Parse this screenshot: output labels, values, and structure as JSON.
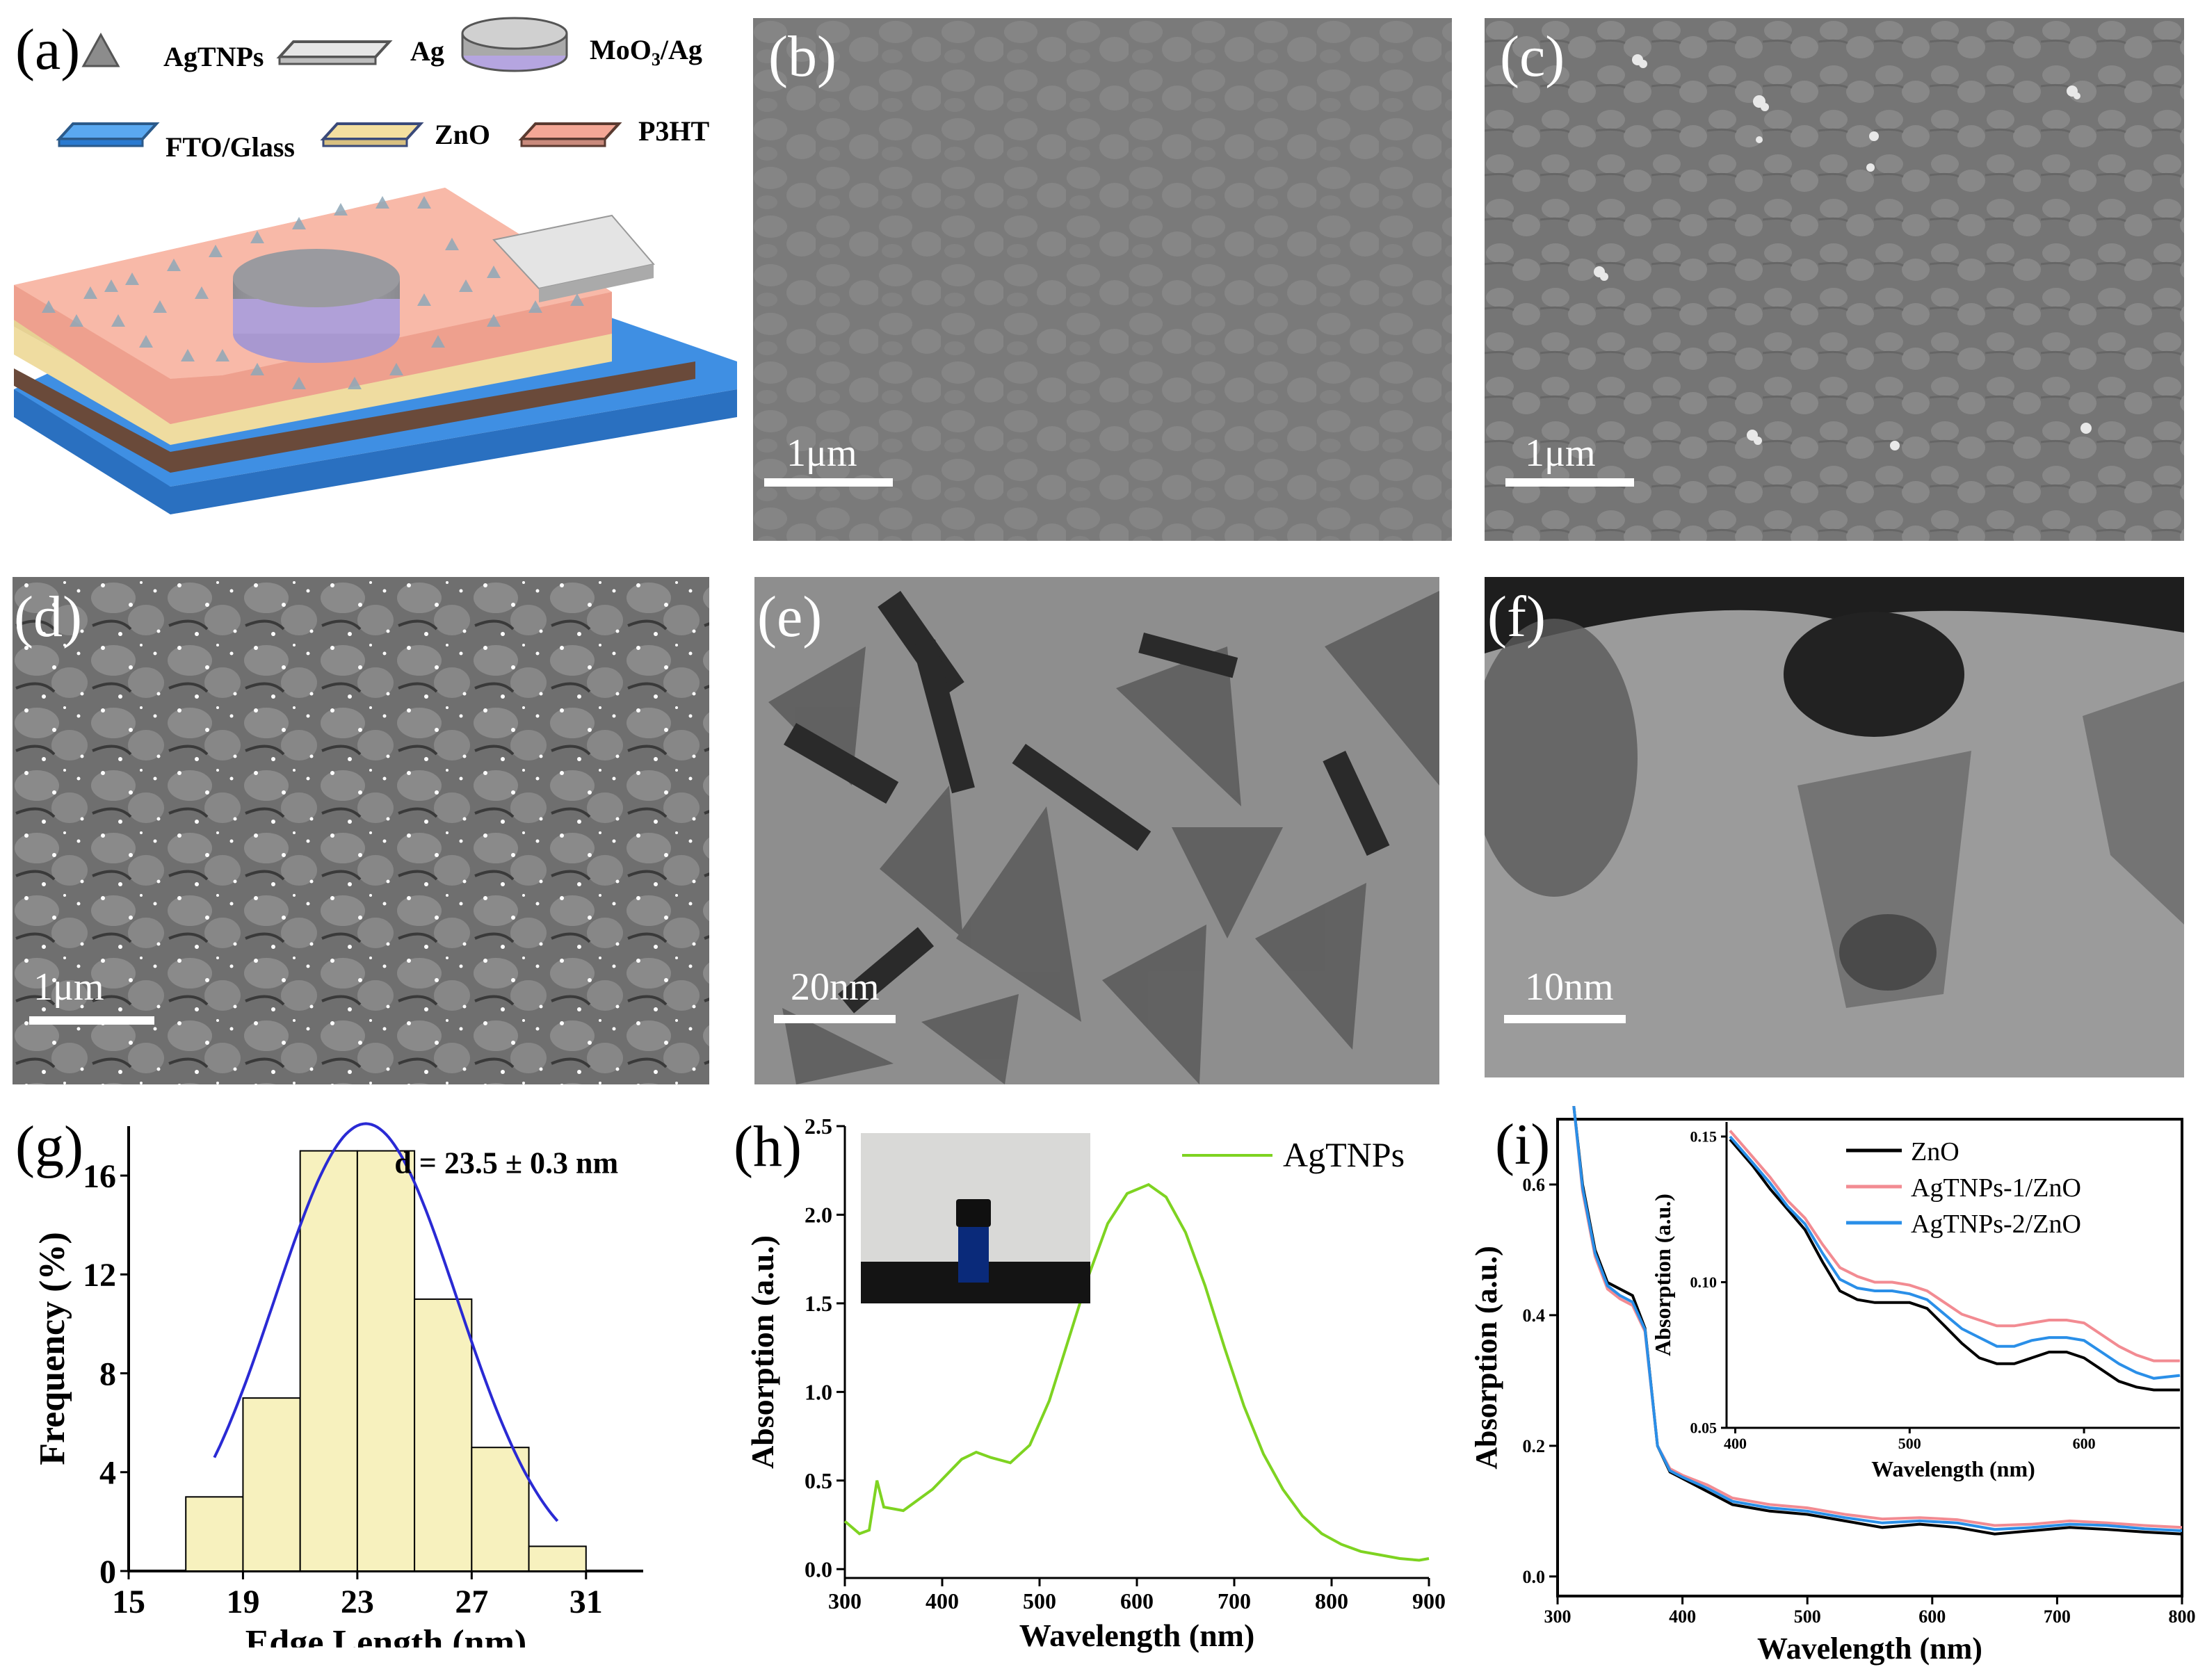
{
  "panel_a": {
    "label": "(a)",
    "legend": {
      "agtnps": "AgTNPs",
      "ag": "Ag",
      "moo3ag_main": "MoO",
      "moo3ag_sub": "3",
      "moo3ag_tail": "/Ag",
      "fto": "FTO/Glass",
      "zno": "ZnO",
      "p3ht": "P3HT"
    },
    "colors": {
      "fto": "#3d8fe0",
      "zno": "#efdca0",
      "p3ht": "#f4a796",
      "ag": "#cfcfcf",
      "disk": "#9a9aa0",
      "disk_side": "#b9a9d8"
    }
  },
  "panel_b": {
    "label": "(b)",
    "scale": "1μm"
  },
  "panel_c": {
    "label": "(c)",
    "scale": "1μm"
  },
  "panel_d": {
    "label": "(d)",
    "scale": "1μm"
  },
  "panel_e": {
    "label": "(e)",
    "scale": "20nm"
  },
  "panel_f": {
    "label": "(f)",
    "scale": "10nm"
  },
  "panel_g": {
    "label": "(g)",
    "annotation": "d = 23.5 ± 0.3 nm",
    "chart_data": {
      "type": "bar",
      "xlabel": "Edge Length (nm)",
      "ylabel": "Frequency (%)",
      "xlim": [
        15,
        33
      ],
      "ylim": [
        0,
        18
      ],
      "xticks": [
        15,
        19,
        23,
        27,
        31
      ],
      "yticks": [
        0,
        4,
        8,
        12,
        16
      ],
      "bins": [
        {
          "from": 17,
          "to": 19,
          "value": 3
        },
        {
          "from": 19,
          "to": 21,
          "value": 7
        },
        {
          "from": 21,
          "to": 23,
          "value": 17
        },
        {
          "from": 23,
          "to": 25,
          "value": 17
        },
        {
          "from": 25,
          "to": 27,
          "value": 11
        },
        {
          "from": 27,
          "to": 29,
          "value": 5
        },
        {
          "from": 29,
          "to": 31,
          "value": 1
        }
      ],
      "fit": {
        "type": "gaussian",
        "mean": 23.3,
        "sigma": 3.2,
        "amplitude": 18.1,
        "from": 18,
        "to": 30
      },
      "colors": {
        "bar": "#f7f1be",
        "fit": "#2a2ad4"
      }
    }
  },
  "panel_h": {
    "label": "(h)",
    "chart_data": {
      "type": "line",
      "xlabel": "Wavelength (nm)",
      "ylabel": "Absorption (a.u.)",
      "xlim": [
        300,
        900
      ],
      "ylim": [
        -0.05,
        2.5
      ],
      "xticks": [
        300,
        400,
        500,
        600,
        700,
        800,
        900
      ],
      "yticks": [
        0.0,
        0.5,
        1.0,
        1.5,
        2.0,
        2.5
      ],
      "series": [
        {
          "name": "AgTNPs",
          "color": "#7ed321",
          "points": [
            [
              300,
              0.27
            ],
            [
              315,
              0.2
            ],
            [
              325,
              0.22
            ],
            [
              333,
              0.5
            ],
            [
              340,
              0.35
            ],
            [
              360,
              0.33
            ],
            [
              390,
              0.45
            ],
            [
              420,
              0.62
            ],
            [
              435,
              0.66
            ],
            [
              450,
              0.63
            ],
            [
              470,
              0.6
            ],
            [
              490,
              0.7
            ],
            [
              510,
              0.95
            ],
            [
              530,
              1.3
            ],
            [
              550,
              1.65
            ],
            [
              570,
              1.95
            ],
            [
              590,
              2.12
            ],
            [
              612,
              2.17
            ],
            [
              630,
              2.1
            ],
            [
              650,
              1.9
            ],
            [
              670,
              1.6
            ],
            [
              690,
              1.25
            ],
            [
              710,
              0.92
            ],
            [
              730,
              0.65
            ],
            [
              750,
              0.45
            ],
            [
              770,
              0.3
            ],
            [
              790,
              0.2
            ],
            [
              810,
              0.14
            ],
            [
              830,
              0.1
            ],
            [
              850,
              0.08
            ],
            [
              870,
              0.06
            ],
            [
              890,
              0.05
            ],
            [
              900,
              0.06
            ]
          ]
        }
      ]
    }
  },
  "panel_i": {
    "label": "(i)",
    "chart_data": [
      {
        "type": "line",
        "xlabel": "Wavelength (nm)",
        "ylabel": "Absorption (a.u.)",
        "xlim": [
          300,
          800
        ],
        "ylim": [
          -0.03,
          0.7
        ],
        "xticks": [
          300,
          400,
          500,
          600,
          700,
          800
        ],
        "yticks": [
          0.0,
          0.2,
          0.4,
          0.6
        ],
        "series": [
          {
            "name": "ZnO",
            "color": "#000000",
            "points": [
              [
                313,
                0.72
              ],
              [
                320,
                0.6
              ],
              [
                330,
                0.5
              ],
              [
                340,
                0.45
              ],
              [
                350,
                0.44
              ],
              [
                360,
                0.43
              ],
              [
                370,
                0.38
              ],
              [
                380,
                0.2
              ],
              [
                390,
                0.16
              ],
              [
                400,
                0.15
              ],
              [
                420,
                0.13
              ],
              [
                440,
                0.11
              ],
              [
                470,
                0.1
              ],
              [
                500,
                0.095
              ],
              [
                530,
                0.085
              ],
              [
                560,
                0.075
              ],
              [
                590,
                0.08
              ],
              [
                620,
                0.075
              ],
              [
                650,
                0.065
              ],
              [
                680,
                0.07
              ],
              [
                710,
                0.075
              ],
              [
                740,
                0.072
              ],
              [
                770,
                0.068
              ],
              [
                800,
                0.065
              ]
            ]
          },
          {
            "name": "AgTNPs-1/ZnO",
            "color": "#f28b92",
            "points": [
              [
                313,
                0.72
              ],
              [
                320,
                0.59
              ],
              [
                330,
                0.49
              ],
              [
                340,
                0.44
              ],
              [
                350,
                0.425
              ],
              [
                360,
                0.415
              ],
              [
                370,
                0.375
              ],
              [
                380,
                0.2
              ],
              [
                390,
                0.165
              ],
              [
                400,
                0.155
              ],
              [
                420,
                0.14
              ],
              [
                440,
                0.12
              ],
              [
                470,
                0.11
              ],
              [
                500,
                0.105
              ],
              [
                530,
                0.095
              ],
              [
                560,
                0.088
              ],
              [
                590,
                0.09
              ],
              [
                620,
                0.087
              ],
              [
                650,
                0.078
              ],
              [
                680,
                0.08
              ],
              [
                710,
                0.085
              ],
              [
                740,
                0.082
              ],
              [
                770,
                0.078
              ],
              [
                800,
                0.075
              ]
            ]
          },
          {
            "name": "AgTNPs-2/ZnO",
            "color": "#2a8fe8",
            "points": [
              [
                313,
                0.72
              ],
              [
                320,
                0.595
              ],
              [
                330,
                0.495
              ],
              [
                340,
                0.445
              ],
              [
                350,
                0.43
              ],
              [
                360,
                0.42
              ],
              [
                370,
                0.378
              ],
              [
                380,
                0.2
              ],
              [
                390,
                0.162
              ],
              [
                400,
                0.152
              ],
              [
                420,
                0.135
              ],
              [
                440,
                0.115
              ],
              [
                470,
                0.105
              ],
              [
                500,
                0.1
              ],
              [
                530,
                0.09
              ],
              [
                560,
                0.082
              ],
              [
                590,
                0.085
              ],
              [
                620,
                0.082
              ],
              [
                650,
                0.072
              ],
              [
                680,
                0.075
              ],
              [
                710,
                0.08
              ],
              [
                740,
                0.078
              ],
              [
                770,
                0.073
              ],
              [
                800,
                0.07
              ]
            ]
          }
        ]
      },
      {
        "type": "line",
        "xlabel": "Wavelength (nm)",
        "ylabel": "Absorption (a.u.)",
        "xlim": [
          395,
          655
        ],
        "ylim": [
          0.05,
          0.155
        ],
        "xticks": [
          400,
          500,
          600
        ],
        "yticks": [
          0.05,
          0.1,
          0.15
        ],
        "series": [
          {
            "name": "ZnO",
            "color": "#000000",
            "points": [
              [
                397,
                0.149
              ],
              [
                410,
                0.14
              ],
              [
                420,
                0.132
              ],
              [
                430,
                0.125
              ],
              [
                440,
                0.118
              ],
              [
                450,
                0.107
              ],
              [
                460,
                0.097
              ],
              [
                470,
                0.094
              ],
              [
                480,
                0.093
              ],
              [
                490,
                0.093
              ],
              [
                500,
                0.093
              ],
              [
                510,
                0.091
              ],
              [
                520,
                0.085
              ],
              [
                530,
                0.079
              ],
              [
                540,
                0.074
              ],
              [
                550,
                0.072
              ],
              [
                560,
                0.072
              ],
              [
                570,
                0.074
              ],
              [
                580,
                0.076
              ],
              [
                590,
                0.076
              ],
              [
                600,
                0.074
              ],
              [
                610,
                0.07
              ],
              [
                620,
                0.066
              ],
              [
                630,
                0.064
              ],
              [
                640,
                0.063
              ],
              [
                655,
                0.063
              ]
            ]
          },
          {
            "name": "AgTNPs-1/ZnO",
            "color": "#f28b92",
            "points": [
              [
                397,
                0.152
              ],
              [
                410,
                0.143
              ],
              [
                420,
                0.136
              ],
              [
                430,
                0.128
              ],
              [
                440,
                0.122
              ],
              [
                450,
                0.113
              ],
              [
                460,
                0.105
              ],
              [
                470,
                0.102
              ],
              [
                480,
                0.1
              ],
              [
                490,
                0.1
              ],
              [
                500,
                0.099
              ],
              [
                510,
                0.097
              ],
              [
                520,
                0.093
              ],
              [
                530,
                0.089
              ],
              [
                540,
                0.087
              ],
              [
                550,
                0.085
              ],
              [
                560,
                0.085
              ],
              [
                570,
                0.086
              ],
              [
                580,
                0.087
              ],
              [
                590,
                0.087
              ],
              [
                600,
                0.086
              ],
              [
                610,
                0.082
              ],
              [
                620,
                0.078
              ],
              [
                630,
                0.075
              ],
              [
                640,
                0.073
              ],
              [
                655,
                0.073
              ]
            ]
          },
          {
            "name": "AgTNPs-2/ZnO",
            "color": "#2a8fe8",
            "points": [
              [
                397,
                0.15
              ],
              [
                410,
                0.141
              ],
              [
                420,
                0.134
              ],
              [
                430,
                0.126
              ],
              [
                440,
                0.12
              ],
              [
                450,
                0.11
              ],
              [
                460,
                0.101
              ],
              [
                470,
                0.098
              ],
              [
                480,
                0.097
              ],
              [
                490,
                0.097
              ],
              [
                500,
                0.096
              ],
              [
                510,
                0.094
              ],
              [
                520,
                0.089
              ],
              [
                530,
                0.084
              ],
              [
                540,
                0.081
              ],
              [
                550,
                0.078
              ],
              [
                560,
                0.078
              ],
              [
                570,
                0.08
              ],
              [
                580,
                0.081
              ],
              [
                590,
                0.081
              ],
              [
                600,
                0.08
              ],
              [
                610,
                0.076
              ],
              [
                620,
                0.072
              ],
              [
                630,
                0.069
              ],
              [
                640,
                0.067
              ],
              [
                655,
                0.068
              ]
            ]
          }
        ]
      }
    ]
  }
}
